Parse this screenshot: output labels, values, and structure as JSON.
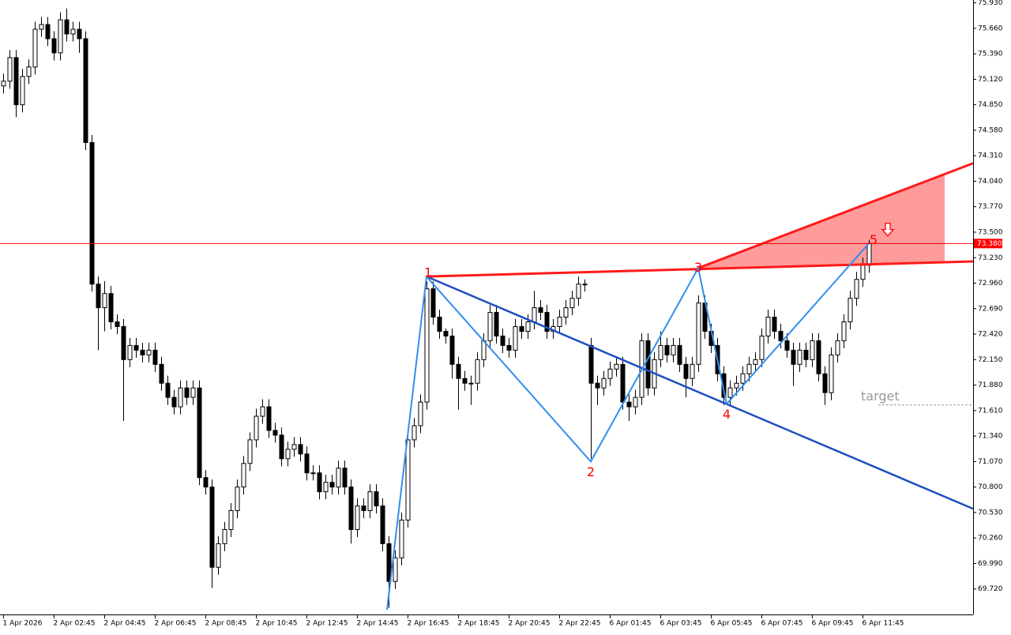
{
  "chart_data": {
    "type": "candlestick",
    "categories": [
      "1 Apr 2026",
      null,
      null,
      null,
      null,
      null,
      null,
      null,
      "2 Apr 02:45",
      null,
      null,
      null,
      null,
      null,
      null,
      null,
      "2 Apr 04:45",
      null,
      null,
      null,
      null,
      null,
      null,
      null,
      "2 Apr 06:45",
      null,
      null,
      null,
      null,
      null,
      null,
      null,
      "2 Apr 08:45",
      null,
      null,
      null,
      null,
      null,
      null,
      null,
      "2 Apr 10:45",
      null,
      null,
      null,
      null,
      null,
      null,
      null,
      "2 Apr 12:45",
      null,
      null,
      null,
      null,
      null,
      null,
      null,
      "2 Apr 14:45",
      null,
      null,
      null,
      null,
      null,
      null,
      null,
      "2 Apr 16:45",
      null,
      null,
      null,
      null,
      null,
      null,
      null,
      "2 Apr 18:45",
      null,
      null,
      null,
      null,
      null,
      null,
      null,
      "2 Apr 20:45",
      null,
      null,
      null,
      null,
      null,
      null,
      null,
      "2 Apr 22:45",
      null,
      null,
      null,
      null,
      null,
      null,
      null,
      "6 Apr 01:45",
      null,
      null,
      null,
      null,
      null,
      null,
      null,
      "6 Apr 03:45",
      null,
      null,
      null,
      null,
      null,
      null,
      null,
      "6 Apr 05:45",
      null,
      null,
      null,
      null,
      null,
      null,
      null,
      "6 Apr 07:45",
      null,
      null,
      null,
      null,
      null,
      null,
      null,
      "6 Apr 09:45",
      null,
      null,
      null,
      null,
      null,
      null,
      null,
      "6 Apr 11:45",
      null
    ],
    "open": [
      75.05,
      75.1,
      75.35,
      74.85,
      75.15,
      75.25,
      75.65,
      75.7,
      75.55,
      75.4,
      75.75,
      75.6,
      75.65,
      75.55,
      74.45,
      72.95,
      72.7,
      72.85,
      72.55,
      72.5,
      72.15,
      72.3,
      72.25,
      72.2,
      72.25,
      72.1,
      71.9,
      71.75,
      71.65,
      71.85,
      71.75,
      71.85,
      70.9,
      70.8,
      69.95,
      70.2,
      70.35,
      70.55,
      70.8,
      71.05,
      71.3,
      71.55,
      71.65,
      71.4,
      71.35,
      71.1,
      71.2,
      71.25,
      71.15,
      70.95,
      70.95,
      70.75,
      70.85,
      70.8,
      71.0,
      70.8,
      70.35,
      70.6,
      70.55,
      70.75,
      70.6,
      70.2,
      69.8,
      70.05,
      70.45,
      71.3,
      71.45,
      71.7,
      72.9,
      72.6,
      72.45,
      72.4,
      72.1,
      71.95,
      71.9,
      71.9,
      72.15,
      72.35,
      72.65,
      72.4,
      72.3,
      72.25,
      72.5,
      72.45,
      72.55,
      72.7,
      72.65,
      72.45,
      72.5,
      72.6,
      72.7,
      72.8,
      72.95,
      72.3,
      71.9,
      71.85,
      71.95,
      72.05,
      72.1,
      71.7,
      71.65,
      71.75,
      72.35,
      71.85,
      72.15,
      72.3,
      72.2,
      72.3,
      72.1,
      71.95,
      72.1,
      72.75,
      72.45,
      72.3,
      72.0,
      71.75,
      71.85,
      71.9,
      72.0,
      72.1,
      72.15,
      72.4,
      72.6,
      72.45,
      72.35,
      72.25,
      72.1,
      72.25,
      72.15,
      72.35,
      72.0,
      71.8,
      72.2,
      72.35,
      72.55,
      72.8,
      73.0,
      73.15
    ],
    "high": [
      75.18,
      75.43,
      75.43,
      75.23,
      75.33,
      75.73,
      75.78,
      75.78,
      75.63,
      75.83,
      75.87,
      75.73,
      75.73,
      75.63,
      74.53,
      73.03,
      72.98,
      72.93,
      72.63,
      72.58,
      72.38,
      72.38,
      72.33,
      72.33,
      72.33,
      72.18,
      71.98,
      71.83,
      71.93,
      71.93,
      71.93,
      71.93,
      70.98,
      70.88,
      70.28,
      70.43,
      70.63,
      70.88,
      71.13,
      71.38,
      71.63,
      71.73,
      71.73,
      71.48,
      71.43,
      71.28,
      71.33,
      71.33,
      71.23,
      71.03,
      71.03,
      70.93,
      70.93,
      71.08,
      71.08,
      70.88,
      70.68,
      70.68,
      70.83,
      70.83,
      70.68,
      70.28,
      70.13,
      70.53,
      71.38,
      71.53,
      71.78,
      72.98,
      72.98,
      72.68,
      72.48,
      72.48,
      72.18,
      72.03,
      71.98,
      72.23,
      72.43,
      72.73,
      72.73,
      72.48,
      72.38,
      72.58,
      72.58,
      72.63,
      72.88,
      72.78,
      72.73,
      72.58,
      72.68,
      72.78,
      72.88,
      73.03,
      73.0,
      72.38,
      71.98,
      72.03,
      72.13,
      72.18,
      72.18,
      71.78,
      71.83,
      72.43,
      72.43,
      72.23,
      72.45,
      72.38,
      72.38,
      72.38,
      72.18,
      72.18,
      72.83,
      72.83,
      72.53,
      72.38,
      72.08,
      71.93,
      71.98,
      72.08,
      72.18,
      72.23,
      72.48,
      72.68,
      72.68,
      72.53,
      72.43,
      72.33,
      72.33,
      72.33,
      72.43,
      72.43,
      72.08,
      72.28,
      72.43,
      72.63,
      72.88,
      73.08,
      73.23,
      73.42
    ],
    "low": [
      74.97,
      75.02,
      74.72,
      74.77,
      75.07,
      75.17,
      75.57,
      75.47,
      75.32,
      75.32,
      75.52,
      75.52,
      75.4,
      74.37,
      72.87,
      72.25,
      72.45,
      72.47,
      72.42,
      71.5,
      72.07,
      72.17,
      72.12,
      72.12,
      72.02,
      71.82,
      71.67,
      71.57,
      71.57,
      71.67,
      71.67,
      70.82,
      70.72,
      69.73,
      69.87,
      70.12,
      70.27,
      70.47,
      70.72,
      70.97,
      71.22,
      71.47,
      71.32,
      71.27,
      71.02,
      71.02,
      71.12,
      71.07,
      70.87,
      70.87,
      70.67,
      70.67,
      70.72,
      70.72,
      70.72,
      70.2,
      70.27,
      70.47,
      70.47,
      70.52,
      70.12,
      69.52,
      69.72,
      69.97,
      70.37,
      71.22,
      71.37,
      71.62,
      72.52,
      72.37,
      72.32,
      71.95,
      71.62,
      71.82,
      71.67,
      71.82,
      72.07,
      72.27,
      72.32,
      72.22,
      72.17,
      72.17,
      72.37,
      72.37,
      72.47,
      72.57,
      72.37,
      72.37,
      72.42,
      72.52,
      72.62,
      72.72,
      72.87,
      71.1,
      71.67,
      71.77,
      71.87,
      71.97,
      71.62,
      71.5,
      71.57,
      71.67,
      71.77,
      71.77,
      72.07,
      72.12,
      72.12,
      72.02,
      71.75,
      71.87,
      72.02,
      72.37,
      72.22,
      71.92,
      71.67,
      71.67,
      71.77,
      71.82,
      71.92,
      72.02,
      72.07,
      72.32,
      72.37,
      72.27,
      72.17,
      71.87,
      72.02,
      72.07,
      72.07,
      71.92,
      71.67,
      71.72,
      72.12,
      72.27,
      72.47,
      72.72,
      72.92,
      73.07
    ],
    "close": [
      75.1,
      75.35,
      74.85,
      75.15,
      75.25,
      75.65,
      75.7,
      75.55,
      75.4,
      75.75,
      75.6,
      75.65,
      75.55,
      74.45,
      72.95,
      72.7,
      72.85,
      72.55,
      72.5,
      72.15,
      72.3,
      72.25,
      72.2,
      72.25,
      72.1,
      71.9,
      71.75,
      71.65,
      71.85,
      71.75,
      71.85,
      70.9,
      70.8,
      69.95,
      70.2,
      70.35,
      70.55,
      70.8,
      71.05,
      71.3,
      71.55,
      71.65,
      71.4,
      71.35,
      71.1,
      71.2,
      71.25,
      71.15,
      70.95,
      70.95,
      70.75,
      70.85,
      70.8,
      71.0,
      70.8,
      70.35,
      70.6,
      70.55,
      70.75,
      70.6,
      70.2,
      69.8,
      70.05,
      70.45,
      71.3,
      71.45,
      71.7,
      72.9,
      72.6,
      72.45,
      72.4,
      72.1,
      71.95,
      71.9,
      71.9,
      72.15,
      72.35,
      72.65,
      72.4,
      72.3,
      72.25,
      72.5,
      72.45,
      72.55,
      72.7,
      72.65,
      72.45,
      72.5,
      72.6,
      72.7,
      72.8,
      72.95,
      72.95,
      71.9,
      71.85,
      71.95,
      72.05,
      72.1,
      71.7,
      71.65,
      71.75,
      72.35,
      71.85,
      72.15,
      72.3,
      72.2,
      72.3,
      72.1,
      71.95,
      72.1,
      72.75,
      72.45,
      72.3,
      72.0,
      71.75,
      71.85,
      71.9,
      72.0,
      72.1,
      72.15,
      72.4,
      72.6,
      72.45,
      72.35,
      72.25,
      72.1,
      72.25,
      72.15,
      72.35,
      72.0,
      71.8,
      72.2,
      72.35,
      72.55,
      72.8,
      73.0,
      73.15,
      73.38
    ],
    "up_color": "#ffffff",
    "down_color": "#000000",
    "outline_color": "#000000",
    "xlim": [
      -0.5,
      153.5
    ],
    "ylim": [
      69.45,
      75.96
    ],
    "yticks": [
      {
        "value": 75.93,
        "label": "75.930"
      },
      {
        "value": 75.66,
        "label": "75.660"
      },
      {
        "value": 75.39,
        "label": "75.390"
      },
      {
        "value": 75.12,
        "label": "75.120"
      },
      {
        "value": 74.85,
        "label": "74.850"
      },
      {
        "value": 74.58,
        "label": "74.580"
      },
      {
        "value": 74.31,
        "label": "74.310"
      },
      {
        "value": 74.04,
        "label": "74.040"
      },
      {
        "value": 73.77,
        "label": "73.770"
      },
      {
        "value": 73.5,
        "label": "73.500"
      },
      {
        "value": 73.23,
        "label": "73.230"
      },
      {
        "value": 72.96,
        "label": "72.960"
      },
      {
        "value": 72.69,
        "label": "72.690"
      },
      {
        "value": 72.42,
        "label": "72.420"
      },
      {
        "value": 72.15,
        "label": "72.150"
      },
      {
        "value": 71.88,
        "label": "71.880"
      },
      {
        "value": 71.61,
        "label": "71.610"
      },
      {
        "value": 71.34,
        "label": "71.340"
      },
      {
        "value": 71.07,
        "label": "71.070"
      },
      {
        "value": 70.8,
        "label": "70.800"
      },
      {
        "value": 70.53,
        "label": "70.530"
      },
      {
        "value": 70.26,
        "label": "70.260"
      },
      {
        "value": 69.99,
        "label": "69.990"
      },
      {
        "value": 69.72,
        "label": "69.720"
      }
    ],
    "price_line": {
      "value": 73.38,
      "label": "73.380",
      "color": "#ff0000"
    },
    "wave": {
      "labels": [
        "1",
        "2",
        "3",
        "4",
        "5"
      ],
      "x": [
        67,
        93,
        110,
        114.5,
        137
      ],
      "y": [
        73.03,
        71.07,
        73.12,
        71.68,
        73.38
      ],
      "color": "#2e8ff0",
      "label_color": "#ff0000"
    },
    "lines": [
      {
        "x": [
          60.75,
          67
        ],
        "y": [
          69.5,
          73.03
        ],
        "color": "#2e8ff0",
        "width": 2
      },
      {
        "x": [
          67,
          153.5
        ],
        "y": [
          73.03,
          70.57
        ],
        "color": "#1f4fc0",
        "width": 2.5
      },
      {
        "x": [
          67,
          153.5
        ],
        "y": [
          73.03,
          73.19
        ],
        "color": "#ff1a1a",
        "width": 3
      },
      {
        "x": [
          110,
          153.5
        ],
        "y": [
          73.12,
          74.23
        ],
        "color": "#ff1a1a",
        "width": 3
      }
    ],
    "zone": {
      "x": [
        110,
        149,
        149
      ],
      "y": [
        73.12,
        74.12,
        73.18
      ],
      "color": "#ff9b9b"
    },
    "target": {
      "label": "target",
      "x": [
        138.5,
        153.5
      ],
      "y": 71.67,
      "color": "#999999"
    },
    "arrow": {
      "x": 140,
      "y": 73.52,
      "color": "#ff0000"
    }
  }
}
